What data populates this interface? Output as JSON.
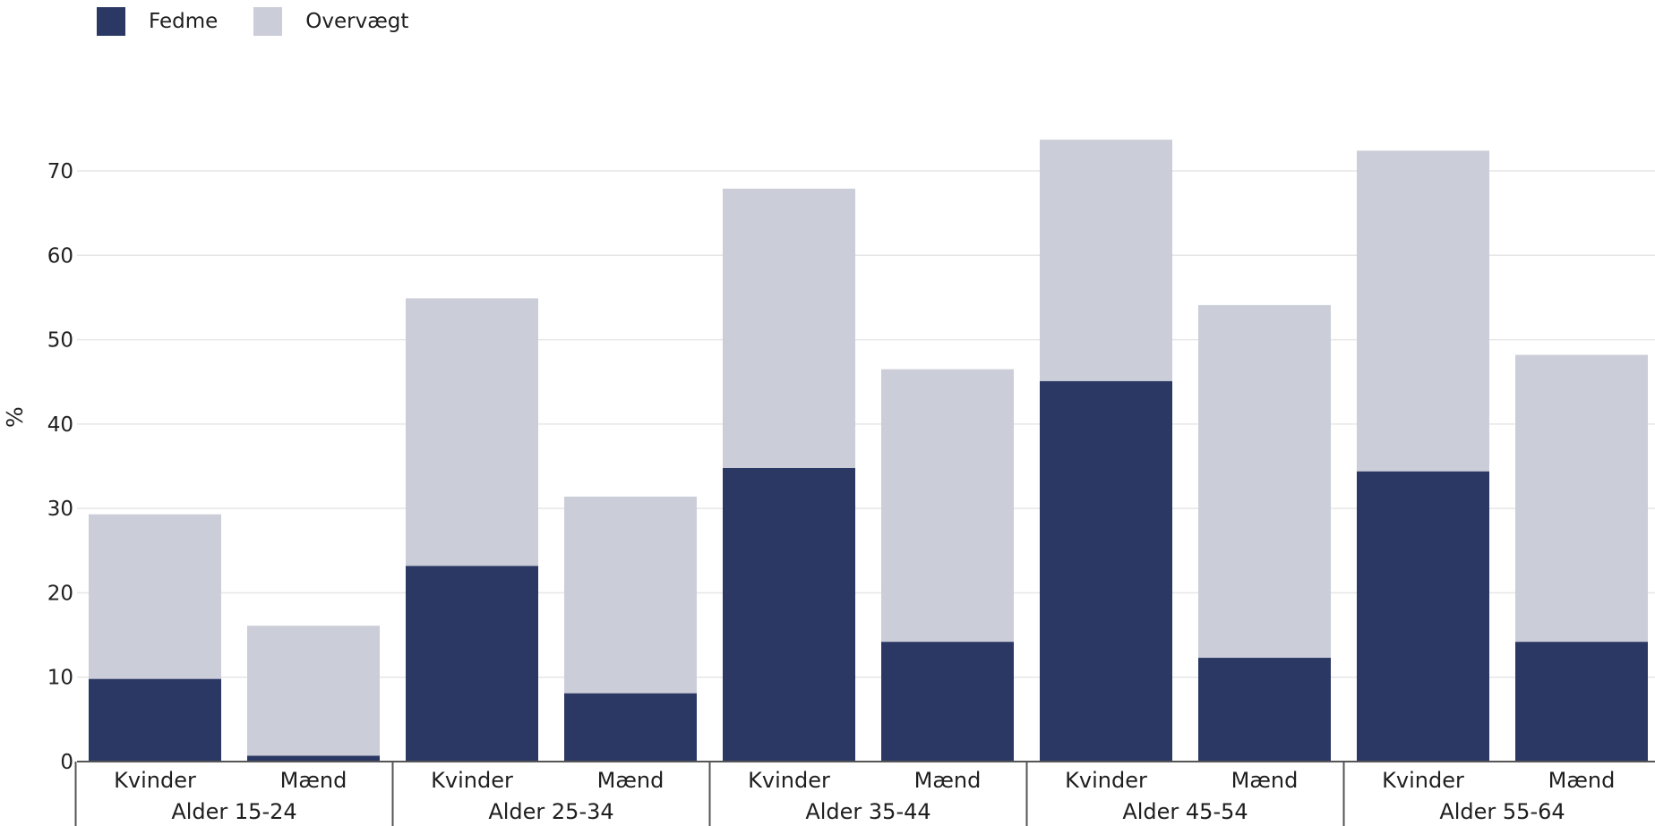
{
  "legend": {
    "obesity_label": "Fedme",
    "overweight_label": "Overvægt"
  },
  "colors": {
    "obesity": "#2b3864",
    "overweight": "#cbcdd8",
    "grid": "#e6e6e6",
    "axis": "#555555",
    "text": "#1f1f1f"
  },
  "chart_data": {
    "type": "bar",
    "stacked": true,
    "ylabel": "%",
    "ylim": [
      0,
      77
    ],
    "yticks": [
      0,
      10,
      20,
      30,
      40,
      50,
      60,
      70
    ],
    "grid": true,
    "legend_position": "top-left",
    "groups": [
      "Alder 15-24",
      "Alder 25-34",
      "Alder 35-44",
      "Alder 45-54",
      "Alder 55-64"
    ],
    "categories": [
      "Kvinder",
      "Mænd",
      "Kvinder",
      "Mænd",
      "Kvinder",
      "Mænd",
      "Kvinder",
      "Mænd",
      "Kvinder",
      "Mænd"
    ],
    "series": [
      {
        "name": "Fedme",
        "values": [
          9.8,
          0.7,
          23.2,
          8.1,
          34.8,
          14.2,
          45.1,
          12.3,
          34.4,
          14.2
        ]
      },
      {
        "name": "Overvægt",
        "values": [
          19.5,
          15.4,
          31.7,
          23.3,
          33.1,
          32.3,
          28.6,
          41.8,
          38.0,
          34.0
        ]
      }
    ]
  }
}
